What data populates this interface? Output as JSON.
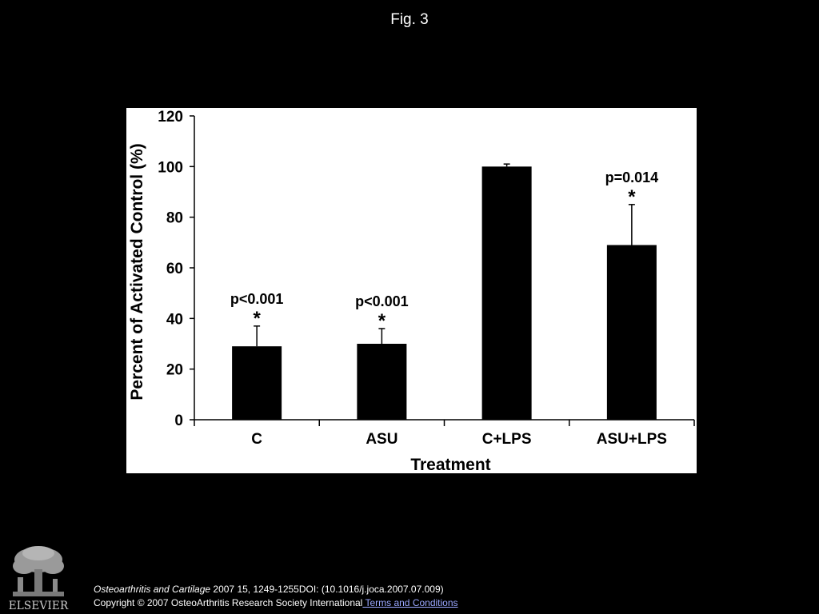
{
  "slide": {
    "title": "Fig. 3"
  },
  "chart_data": {
    "type": "bar",
    "xlabel": "Treatment",
    "ylabel": "Percent of Activated Control (%)",
    "ylim": [
      0,
      120
    ],
    "yticks": [
      0,
      20,
      40,
      60,
      80,
      100,
      120
    ],
    "grid": false,
    "legend": "none",
    "bar_color": "#000000",
    "categories": [
      "C",
      "ASU",
      "C+LPS",
      "ASU+LPS"
    ],
    "values": [
      29,
      30,
      100,
      69
    ],
    "error_upper": [
      37,
      36,
      101,
      85
    ],
    "annotations": [
      {
        "category": "C",
        "p_value": "p<0.001",
        "marker": "*"
      },
      {
        "category": "ASU",
        "p_value": "p<0.001",
        "marker": "*"
      },
      {
        "category": "ASU+LPS",
        "p_value": "p=0.014",
        "marker": "*"
      }
    ]
  },
  "footer": {
    "journal": "Osteoarthritis and Cartilage",
    "citation": " 2007 15, 1249-1255DOI: (10.1016/j.joca.2007.07.009)",
    "copyright": "Copyright © 2007 OsteoArthritis Research Society International",
    "terms_link": " Terms and Conditions"
  },
  "logo": {
    "text": "ELSEVIER"
  }
}
